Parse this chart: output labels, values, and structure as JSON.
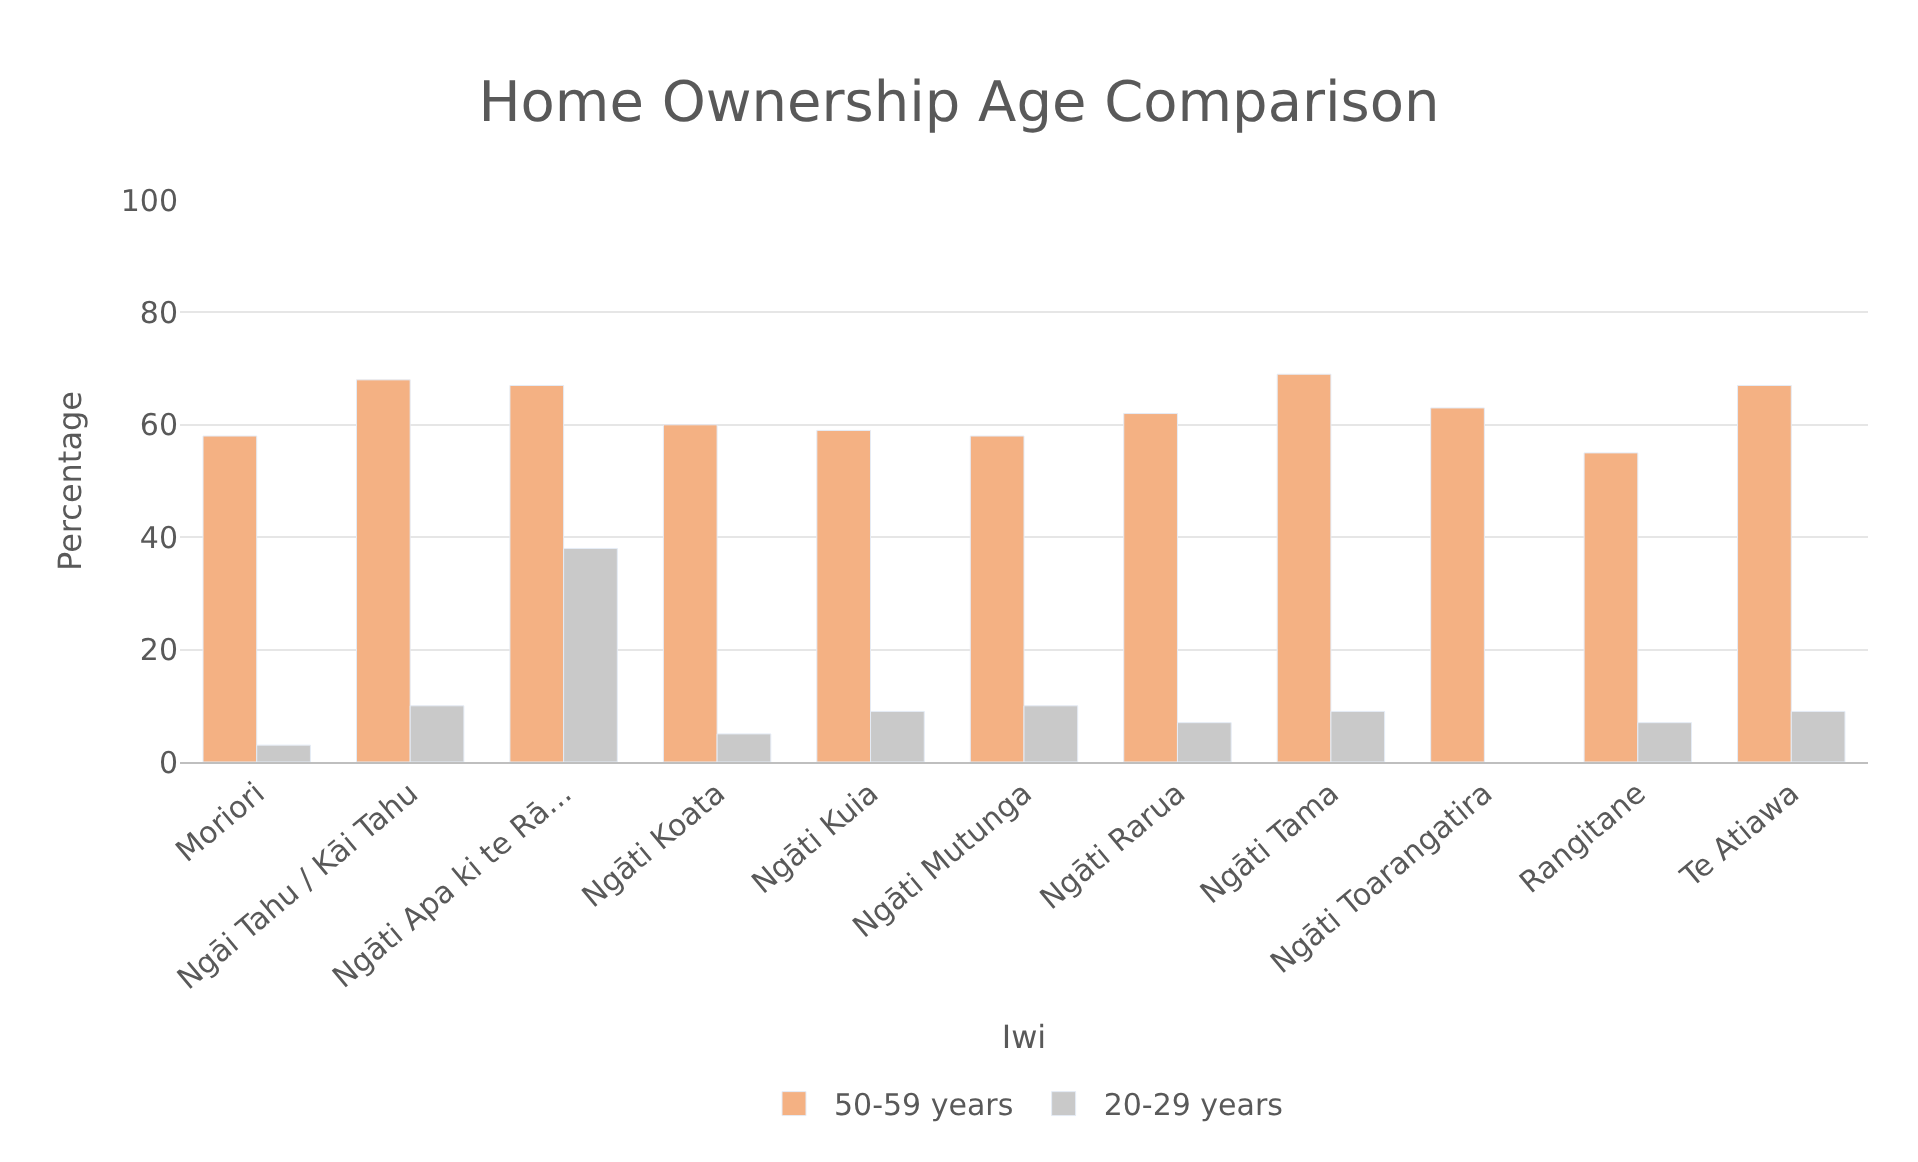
{
  "chart_data": {
    "type": "bar",
    "title": "Home Ownership Age Comparison",
    "xlabel": "Iwi",
    "ylabel": "Percentage",
    "categories": [
      "Moriori",
      "Ngāi Tahu / Kāi Tahu",
      "Ngāti Apa ki te Rā...",
      "Ngāti Koata",
      "Ngāti Kuia",
      "Ngāti Mutunga",
      "Ngāti Rarua",
      "Ngāti Tama",
      "Ngāti Toarangatira",
      "Rangitane",
      "Te Atiawa"
    ],
    "series": [
      {
        "name": "50-59 years",
        "color": "#f4b183",
        "values": [
          58,
          68,
          67,
          60,
          59,
          58,
          62,
          69,
          63,
          55,
          67
        ]
      },
      {
        "name": "20-29 years",
        "color": "#c9c9c9",
        "values": [
          3,
          10,
          38,
          5,
          9,
          10,
          7,
          9,
          null,
          7,
          9
        ]
      }
    ],
    "ylim": [
      0,
      100
    ],
    "yticks": [
      0,
      20,
      40,
      60,
      80,
      100
    ],
    "grid": "y",
    "legend": "bottom"
  }
}
